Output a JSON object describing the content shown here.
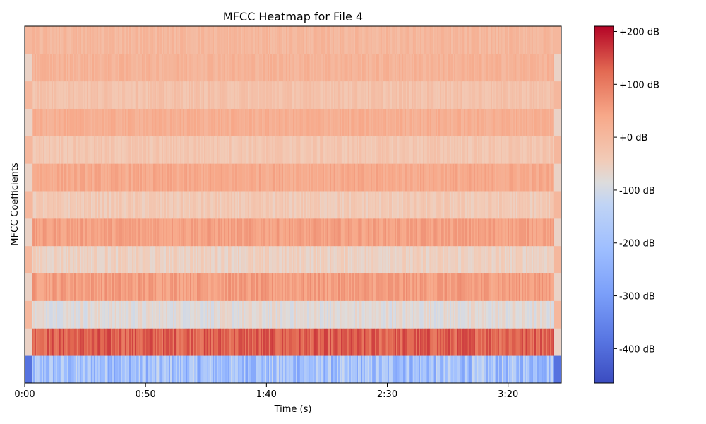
{
  "chart_data": {
    "type": "heatmap",
    "title": "MFCC Heatmap for File 4",
    "xlabel": "Time (s)",
    "ylabel": "MFCC Coefficients",
    "x_ticks": [
      {
        "value": 0,
        "label": "0:00"
      },
      {
        "value": 50,
        "label": "0:50"
      },
      {
        "value": 100,
        "label": "1:40"
      },
      {
        "value": 150,
        "label": "2:30"
      },
      {
        "value": 200,
        "label": "3:20"
      }
    ],
    "xlim": [
      0,
      222
    ],
    "n_coefficients": 13,
    "colorbar": {
      "colormap": "coolwarm",
      "range": [
        -465,
        210
      ],
      "ticks": [
        {
          "value": 200,
          "label": "+200 dB"
        },
        {
          "value": 100,
          "label": "+100 dB"
        },
        {
          "value": 0,
          "label": "+0 dB"
        },
        {
          "value": -100,
          "label": "-100 dB"
        },
        {
          "value": -200,
          "label": "-200 dB"
        },
        {
          "value": -300,
          "label": "-300 dB"
        },
        {
          "value": -400,
          "label": "-400 dB"
        }
      ]
    },
    "coefficient_means_db": [
      -200,
      130,
      -80,
      55,
      -55,
      50,
      -40,
      35,
      -30,
      25,
      -20,
      15,
      5
    ],
    "coefficient_variation_db": [
      90,
      35,
      25,
      25,
      20,
      20,
      20,
      20,
      18,
      18,
      18,
      18,
      18
    ],
    "quiet_edges_s": {
      "start": 3,
      "end": 219
    },
    "grid": false
  }
}
